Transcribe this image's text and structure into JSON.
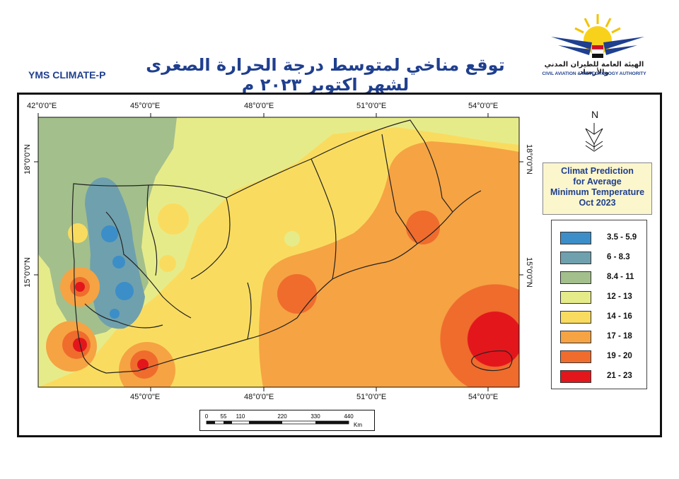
{
  "header": {
    "arabic_title": "توقع مناخي لمتوسط درجة الحرارة الصغرى لشهر اكتوبر ٢٠٢٣ م",
    "product_code": "YMS CLIMATE-P",
    "logo_arabic": "الهيئة العامة للطيران المدني والأرصاد",
    "logo_english": "CIVIL AVIATION & METEOROLOGY AUTHORITY"
  },
  "map": {
    "top_lon_labels": [
      "42°0'0\"E",
      "45°0'0\"E",
      "48°0'0\"E",
      "51°0'0\"E",
      "54°0'0\"E"
    ],
    "bottom_lon_labels": [
      "45°0'0\"E",
      "48°0'0\"E",
      "51°0'0\"E",
      "54°0'0\"E"
    ],
    "left_lat_labels": [
      "18°0'0\"N",
      "15°0'0\"N"
    ],
    "right_lat_labels": [
      "18°0'0\"N",
      "15°0'0\"N"
    ],
    "north_arrow_label": "N"
  },
  "info_box": {
    "line1": "Climat Prediction",
    "line2": "for Average",
    "line3": "Minimum Temperature",
    "line4": "Oct 2023"
  },
  "legend": [
    {
      "label": "3.5 - 5.9",
      "color": "#3b8ec8"
    },
    {
      "label": "6 - 8.3",
      "color": "#6fa0ad"
    },
    {
      "label": "8.4 - 11",
      "color": "#a3bf8c"
    },
    {
      "label": "12 - 13",
      "color": "#e6eb8a"
    },
    {
      "label": "14 - 16",
      "color": "#f9dc5f"
    },
    {
      "label": "17 - 18",
      "color": "#f6a343"
    },
    {
      "label": "19 - 20",
      "color": "#ef6c2d"
    },
    {
      "label": "21 - 23",
      "color": "#e3161c"
    }
  ],
  "scale_bar": {
    "ticks": [
      "0",
      "55",
      "110",
      "220",
      "330",
      "440"
    ],
    "unit": "Km"
  }
}
